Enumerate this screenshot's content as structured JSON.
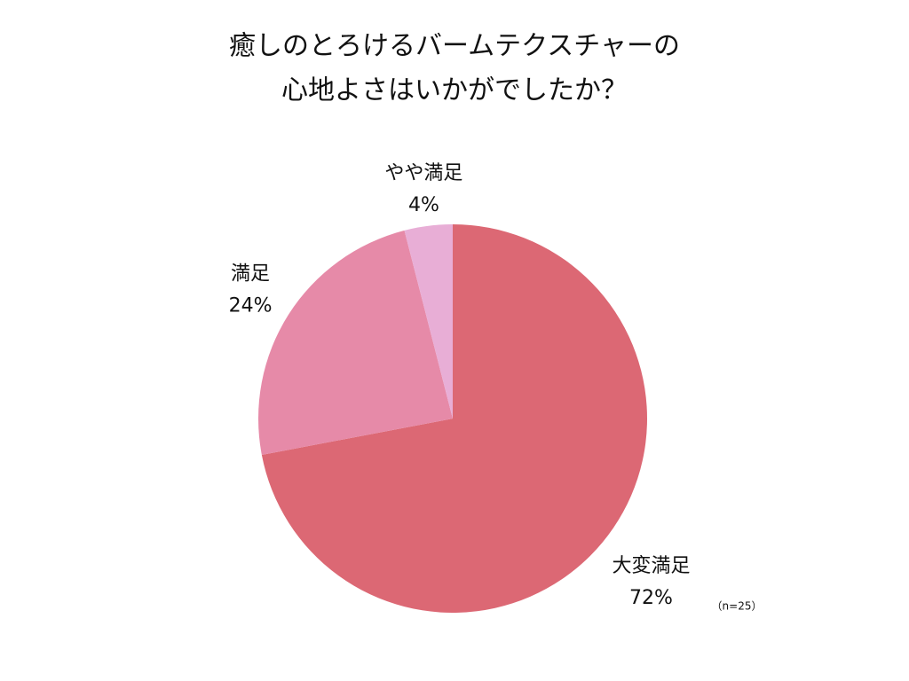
{
  "chart_data": {
    "type": "pie",
    "title": [
      "癒しのとろけるバームテクスチャーの",
      "心地よさはいかがでしたか？"
    ],
    "categories": [
      "大変満足",
      "満足",
      "やや満足"
    ],
    "values": [
      72,
      24,
      4
    ],
    "value_labels": [
      "72%",
      "24%",
      "4%"
    ],
    "colors": [
      "#dc6874",
      "#e68aa8",
      "#e8aed6"
    ],
    "annotation": "（n=25）"
  }
}
